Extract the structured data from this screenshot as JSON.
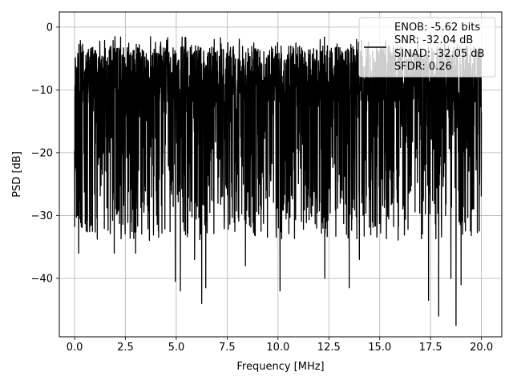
{
  "chart_data": {
    "type": "line",
    "xlabel": "Frequency [MHz]",
    "ylabel": "PSD [dB]",
    "xlim": [
      -0.75,
      21.0
    ],
    "ylim": [
      -49.3,
      2.4
    ],
    "xticks": [
      0.0,
      2.5,
      5.0,
      7.5,
      10.0,
      12.5,
      15.0,
      17.5,
      20.0
    ],
    "xtick_labels": [
      "0.0",
      "2.5",
      "5.0",
      "7.5",
      "10.0",
      "12.5",
      "15.0",
      "17.5",
      "20.0"
    ],
    "yticks": [
      0,
      -10,
      -20,
      -30,
      -40
    ],
    "ytick_labels": [
      "0",
      "−10",
      "−20",
      "−30",
      "−40"
    ],
    "grid": true,
    "legend": {
      "placement": "top-right",
      "entries": [
        "ENOB: -5.62 bits",
        "SNR: -32.04 dB",
        "SINAD: -32.05 dB",
        "SFDR: 0.26"
      ]
    },
    "series": [
      {
        "color": "#000000",
        "x_range": [
          0.0,
          20.0
        ],
        "noise_floor_band": [
          -27,
          -3
        ],
        "peak_max": -1.5,
        "notable_minima": [
          {
            "x": 0.2,
            "y": -36
          },
          {
            "x": 1.95,
            "y": -36
          },
          {
            "x": 3.0,
            "y": -36
          },
          {
            "x": 4.95,
            "y": -40.5
          },
          {
            "x": 5.2,
            "y": -42
          },
          {
            "x": 5.9,
            "y": -37
          },
          {
            "x": 6.25,
            "y": -44
          },
          {
            "x": 6.45,
            "y": -41.5
          },
          {
            "x": 8.4,
            "y": -38
          },
          {
            "x": 10.1,
            "y": -42
          },
          {
            "x": 12.3,
            "y": -40
          },
          {
            "x": 13.5,
            "y": -41.5
          },
          {
            "x": 14.0,
            "y": -37
          },
          {
            "x": 17.4,
            "y": -43.5
          },
          {
            "x": 17.9,
            "y": -46
          },
          {
            "x": 18.5,
            "y": -40
          },
          {
            "x": 18.75,
            "y": -47.5
          },
          {
            "x": 19.0,
            "y": -41
          }
        ]
      }
    ]
  }
}
